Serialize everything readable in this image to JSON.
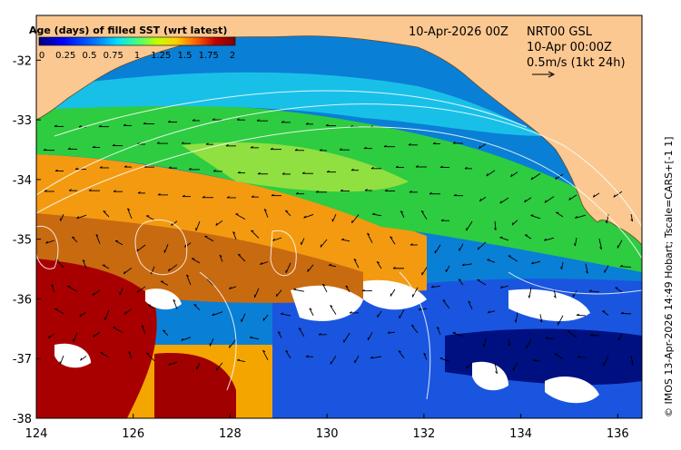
{
  "map": {
    "lon_range": [
      124,
      136.5
    ],
    "lat_range": [
      -38,
      -31.25
    ],
    "x_ticks": [
      124,
      126,
      128,
      130,
      132,
      134,
      136
    ],
    "x_tick_labels": [
      "124",
      "126",
      "128",
      "130",
      "132",
      "134",
      "136"
    ],
    "y_ticks": [
      -32,
      -33,
      -34,
      -35,
      -36,
      -37,
      -38
    ],
    "y_tick_labels": [
      "-32",
      "-33",
      "-34",
      "-35",
      "-36",
      "-37",
      "-38"
    ],
    "land_color": "#fcc891"
  },
  "legend": {
    "title": "Age (days) of filled SST (wrt latest)",
    "tick_labels": [
      "0",
      "0.25",
      "0.5",
      "0.75",
      "1",
      "1.25",
      "1.5",
      "1.75",
      "2"
    ],
    "range": [
      0,
      2
    ],
    "colors": [
      "#00007f",
      "#0000ff",
      "#0080ff",
      "#00e0ff",
      "#40ff80",
      "#c0ff00",
      "#ffd000",
      "#ff6000",
      "#c00000",
      "#800000"
    ]
  },
  "annotations": {
    "datetime": "10-Apr-2026 00Z",
    "product": "NRT00 GSL",
    "valid_time": "10-Apr 00:00Z",
    "vector_scale": "0.5m/s (1kt 24h)"
  },
  "credit": "© IMOS 13-Apr-2026 14:49 Hobart; Tscale=CARS+[-1 1]"
}
